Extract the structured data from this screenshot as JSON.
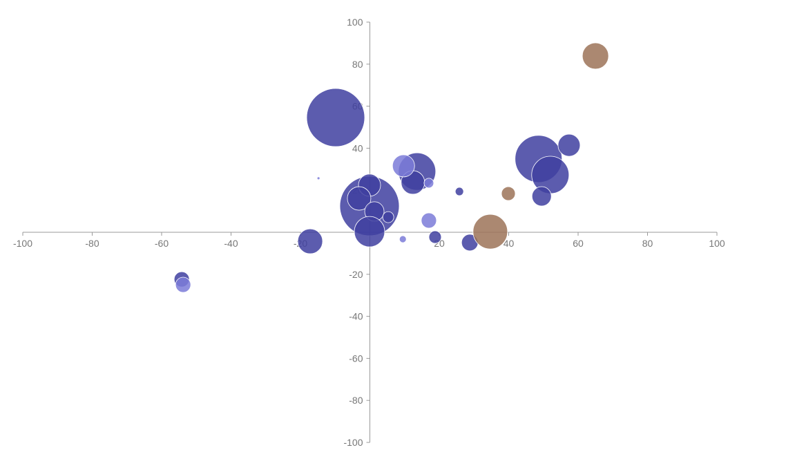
{
  "chart_data": {
    "type": "bubble",
    "xlim": [
      -100,
      100
    ],
    "ylim": [
      -100,
      100
    ],
    "xticks": [
      -100,
      -80,
      -60,
      -40,
      -20,
      20,
      40,
      60,
      80,
      100
    ],
    "yticks": [
      -100,
      -80,
      -60,
      -40,
      -20,
      20,
      40,
      60,
      80,
      100
    ],
    "series": [
      {
        "color": "#3f3fa0",
        "x": [
          -9.85,
          -0.1,
          -0.1,
          -3.1,
          1.3,
          5.3,
          -0.1,
          -17.2,
          -54.2,
          13.6,
          12.4,
          25.8,
          18.8,
          28.8,
          48.6,
          52,
          49.5,
          57.4
        ],
        "values": [
          54.6,
          12.5,
          22.4,
          16.1,
          9.9,
          7.2,
          0.3,
          -4.3,
          -22.4,
          28.9,
          23.7,
          19.4,
          -2.3,
          -4.9,
          34.9,
          27.3,
          17.1,
          41.4
        ],
        "sizes": [
          42,
          43,
          16,
          17,
          14,
          8,
          22,
          18,
          11,
          27,
          17,
          6,
          9,
          12,
          34,
          27,
          14,
          16
        ]
      },
      {
        "color": "#7b7bd8",
        "x": [
          9.7,
          17,
          9.5,
          -53.8,
          -14.8,
          17
        ],
        "values": [
          31.6,
          5.6,
          -3.3,
          -25,
          25.7,
          23.4
        ],
        "sizes": [
          16,
          11,
          5,
          11,
          2,
          7
        ]
      },
      {
        "color": "#9c7358",
        "x": [
          65,
          34.7,
          39.9
        ],
        "values": [
          83.9,
          0.3,
          18.4
        ],
        "sizes": [
          19,
          25,
          10
        ]
      }
    ]
  }
}
